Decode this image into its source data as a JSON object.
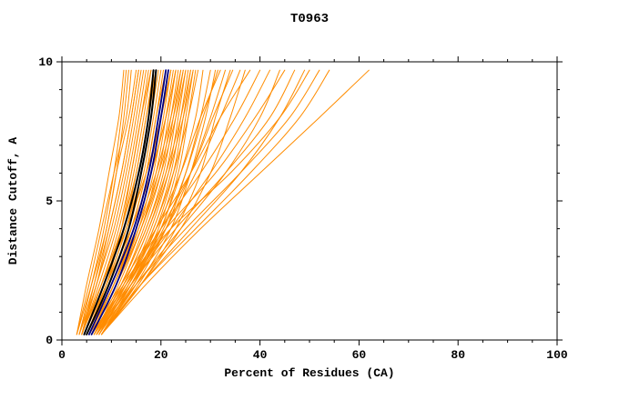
{
  "chart_data": {
    "type": "line",
    "title": "T0963",
    "xlabel": "Percent of Residues (CA)",
    "ylabel": "Distance Cutoff, A",
    "xlim": [
      0,
      100
    ],
    "ylim": [
      0,
      10
    ],
    "xticks": [
      0,
      20,
      40,
      60,
      80,
      100
    ],
    "yticks": [
      0,
      5,
      10
    ],
    "x_minor_step": 5,
    "y_minor_step": 1,
    "grid": false,
    "legend": "none",
    "colors": {
      "background": "#ffffff",
      "axis": "#000000",
      "ensemble": "#ff8c00",
      "highlight_black": "#000000",
      "highlight_navy": "#000080"
    },
    "y_grid": [
      0.2,
      2,
      4,
      6,
      8,
      9.7
    ],
    "series": [
      {
        "name": "prediction-ensemble",
        "color": "#ff8c00",
        "width": 1,
        "curves": [
          [
            3,
            5.5,
            8,
            10.5,
            13,
            14
          ],
          [
            3,
            6,
            9,
            11,
            13.5,
            15
          ],
          [
            3.5,
            6.5,
            9.5,
            12,
            14,
            15.5
          ],
          [
            3.5,
            7,
            10,
            12.5,
            14.5,
            16
          ],
          [
            4,
            7,
            10.5,
            13,
            15,
            16.5
          ],
          [
            4,
            7.5,
            11,
            13.5,
            15.5,
            17
          ],
          [
            4,
            8,
            11.5,
            14,
            16,
            17.5
          ],
          [
            4.5,
            8,
            12,
            14.5,
            16.5,
            18
          ],
          [
            4.5,
            8.5,
            12.5,
            15,
            17,
            18.5
          ],
          [
            5,
            9,
            13,
            15.5,
            17.5,
            19
          ],
          [
            5,
            9,
            13,
            16,
            18,
            19.5
          ],
          [
            5,
            9.5,
            13.5,
            16.5,
            18.5,
            20
          ],
          [
            5.5,
            10,
            14,
            17,
            19,
            20.5
          ],
          [
            5.5,
            10,
            14.5,
            17.5,
            19.5,
            21
          ],
          [
            6,
            10.5,
            15,
            18,
            20,
            21.5
          ],
          [
            6,
            11,
            15.5,
            18.5,
            20.5,
            22
          ],
          [
            6,
            11,
            16,
            19,
            21,
            22.5
          ],
          [
            6.5,
            11.5,
            16,
            19.5,
            21.5,
            23
          ],
          [
            6.5,
            12,
            16.5,
            20,
            22,
            23.5
          ],
          [
            7,
            12,
            17,
            20.5,
            22.5,
            24
          ],
          [
            7,
            12.5,
            17.5,
            21,
            23,
            24.5
          ],
          [
            7,
            13,
            18,
            21.5,
            23.5,
            25
          ],
          [
            7.5,
            13,
            18.5,
            22,
            24,
            25.5
          ],
          [
            7.5,
            13.5,
            19,
            22.5,
            24.5,
            26
          ],
          [
            8,
            14,
            19.5,
            23,
            25,
            26.5
          ],
          [
            8,
            14,
            20,
            23.5,
            25.5,
            27
          ],
          [
            4,
            8,
            13,
            17,
            20,
            22
          ],
          [
            4.5,
            9,
            14,
            18,
            21,
            23
          ],
          [
            5,
            10,
            15,
            19,
            22,
            24
          ],
          [
            5.5,
            10.5,
            15.5,
            19.5,
            22.5,
            24.5
          ],
          [
            6,
            11,
            16,
            20,
            23,
            25
          ],
          [
            6.5,
            12,
            17,
            21,
            24,
            26
          ],
          [
            7,
            12.5,
            17.5,
            21.5,
            24.5,
            26.5
          ],
          [
            7.5,
            13.5,
            18.5,
            22.5,
            25.5,
            27.5
          ],
          [
            8,
            14.5,
            20,
            24,
            27,
            28.5
          ],
          [
            5,
            9,
            12,
            14,
            16,
            18
          ],
          [
            4,
            6.5,
            9,
            11,
            12.5,
            13.5
          ],
          [
            3.5,
            6,
            8.5,
            10.5,
            12,
            13
          ],
          [
            3,
            5,
            7.5,
            9.5,
            11.5,
            12.5
          ],
          [
            4,
            7,
            9.5,
            12,
            14,
            15.5
          ],
          [
            8,
            15,
            21,
            25,
            28,
            30
          ],
          [
            8,
            15.5,
            22,
            26,
            29,
            31
          ],
          [
            7,
            14,
            20.5,
            25,
            28.5,
            31.5
          ],
          [
            6,
            13,
            19,
            24,
            28,
            32
          ],
          [
            7.5,
            14.5,
            21,
            26,
            30,
            33
          ],
          [
            8,
            16,
            23,
            28,
            31,
            34
          ],
          [
            6.5,
            13.5,
            20,
            26,
            30.5,
            34.5
          ],
          [
            7,
            14,
            21,
            27,
            32,
            36
          ],
          [
            8,
            16,
            24,
            30,
            34,
            37
          ],
          [
            5.5,
            12,
            19,
            26,
            32,
            38
          ],
          [
            6,
            12.5,
            20,
            28,
            35,
            40
          ],
          [
            7,
            14,
            22,
            30,
            37,
            42
          ],
          [
            8,
            15,
            24,
            33,
            40,
            44
          ],
          [
            6,
            13,
            21,
            31,
            39,
            45
          ],
          [
            7,
            14,
            23,
            33,
            42,
            47
          ],
          [
            8,
            16,
            26,
            36,
            44,
            49
          ],
          [
            6.5,
            13,
            22,
            34,
            44,
            50
          ],
          [
            7,
            15,
            25,
            36,
            46,
            52
          ],
          [
            8,
            16,
            27,
            38,
            48,
            54
          ],
          [
            8,
            17,
            28,
            40,
            52,
            62
          ],
          [
            5,
            10,
            14,
            17,
            19,
            21
          ],
          [
            5.5,
            10.5,
            14.5,
            17.5,
            20,
            22
          ],
          [
            4.5,
            8.5,
            12,
            15,
            17,
            19
          ],
          [
            6,
            11,
            15,
            18,
            21,
            23
          ]
        ]
      },
      {
        "name": "highlight-black",
        "color": "#000000",
        "width": 2,
        "curves": [
          [
            4.5,
            8.5,
            12.5,
            15.5,
            17.5,
            18.5
          ],
          [
            5,
            9.5,
            13.5,
            16,
            18,
            19
          ]
        ]
      },
      {
        "name": "highlight-navy",
        "color": "#000080",
        "width": 1.8,
        "curves": [
          [
            5.5,
            10,
            14.5,
            17.5,
            19.5,
            21
          ],
          [
            6,
            11,
            15,
            18,
            20,
            21.5
          ]
        ]
      }
    ]
  }
}
